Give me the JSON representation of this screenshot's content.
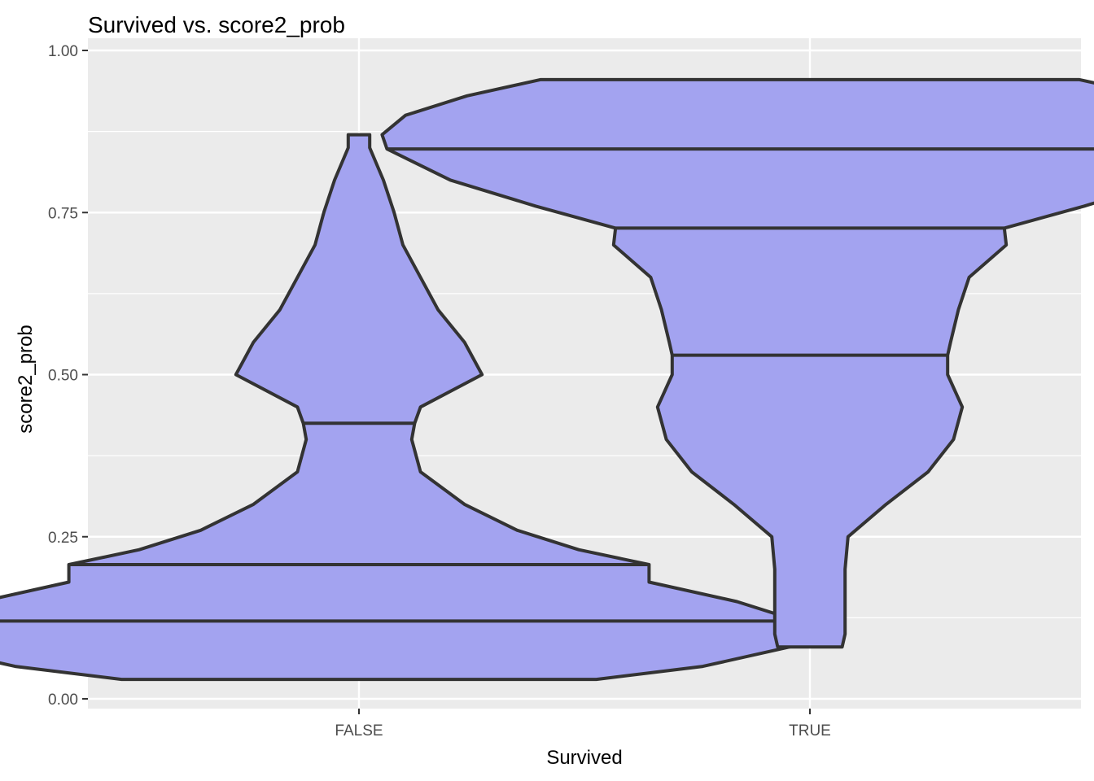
{
  "chart_data": {
    "type": "violin",
    "title": "Survived vs. score2_prob",
    "xlabel": "Survived",
    "ylabel": "score2_prob",
    "categories": [
      "FALSE",
      "TRUE"
    ],
    "ylim": [
      -0.015,
      1.0
    ],
    "y_ticks": [
      0.0,
      0.25,
      0.5,
      0.75,
      1.0
    ],
    "y_tick_labels": [
      "0.00",
      "0.25",
      "0.50",
      "0.75",
      "1.00"
    ],
    "grid": true,
    "legend": "none",
    "fill_color": "#a3a3f0",
    "outline_color": "#333333",
    "panel_color": "#ebebeb",
    "grid_color": "#ffffff",
    "violins": [
      {
        "category": "FALSE",
        "ymin": 0.03,
        "ymax": 0.87,
        "quantiles": [
          0.12,
          0.207,
          0.425
        ],
        "profile": [
          [
            0.03,
            0.243
          ],
          [
            0.05,
            0.352
          ],
          [
            0.08,
            0.441
          ],
          [
            0.1,
            0.468
          ],
          [
            0.12,
            0.45
          ],
          [
            0.15,
            0.387
          ],
          [
            0.18,
            0.297
          ],
          [
            0.207,
            0.297
          ],
          [
            0.23,
            0.225
          ],
          [
            0.26,
            0.162
          ],
          [
            0.3,
            0.108
          ],
          [
            0.35,
            0.063
          ],
          [
            0.4,
            0.054
          ],
          [
            0.425,
            0.057
          ],
          [
            0.45,
            0.063
          ],
          [
            0.5,
            0.126
          ],
          [
            0.55,
            0.108
          ],
          [
            0.6,
            0.081
          ],
          [
            0.65,
            0.063
          ],
          [
            0.7,
            0.045
          ],
          [
            0.75,
            0.036
          ],
          [
            0.8,
            0.025
          ],
          [
            0.85,
            0.011
          ],
          [
            0.87,
            0.011
          ]
        ]
      },
      {
        "category": "TRUE",
        "ymin": 0.08,
        "ymax": 0.955,
        "quantiles": [
          0.53,
          0.726,
          0.848
        ],
        "profile": [
          [
            0.08,
            0.033
          ],
          [
            0.1,
            0.036
          ],
          [
            0.15,
            0.036
          ],
          [
            0.2,
            0.036
          ],
          [
            0.25,
            0.039
          ],
          [
            0.3,
            0.078
          ],
          [
            0.35,
            0.121
          ],
          [
            0.4,
            0.147
          ],
          [
            0.45,
            0.156
          ],
          [
            0.5,
            0.141
          ],
          [
            0.53,
            0.141
          ],
          [
            0.55,
            0.144
          ],
          [
            0.6,
            0.152
          ],
          [
            0.65,
            0.163
          ],
          [
            0.7,
            0.201
          ],
          [
            0.726,
            0.199
          ],
          [
            0.76,
            0.281
          ],
          [
            0.8,
            0.368
          ],
          [
            0.848,
            0.433
          ],
          [
            0.87,
            0.438
          ],
          [
            0.9,
            0.414
          ],
          [
            0.93,
            0.351
          ],
          [
            0.955,
            0.276
          ]
        ]
      }
    ]
  }
}
